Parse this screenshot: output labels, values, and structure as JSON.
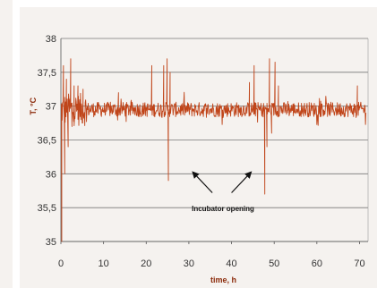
{
  "chart_data": {
    "type": "line",
    "title": "",
    "xlabel": "time, h",
    "ylabel": "T, °C",
    "xlim": [
      0,
      72
    ],
    "ylim": [
      35,
      38
    ],
    "x_ticks": [
      "0",
      "10",
      "20",
      "30",
      "40",
      "50",
      "60",
      "70"
    ],
    "x_tick_values": [
      0,
      10,
      20,
      30,
      40,
      50,
      60,
      70
    ],
    "y_ticks": [
      "35",
      "35,5",
      "36",
      "36,5",
      "37",
      "37,5",
      "38"
    ],
    "y_tick_values": [
      35,
      35.5,
      36,
      36.5,
      37,
      37.5,
      38
    ],
    "grid": "horizontal",
    "legend": "none",
    "colors": {
      "series": "#c0451a",
      "axis_title": "#8b2a0a",
      "grid": "#777777",
      "background": "#f5f2ef",
      "frame": "#ffffff"
    },
    "series": [
      {
        "baseline": 36.95,
        "x_end": 71.5,
        "spikes": [
          {
            "x": 0.2,
            "y": 35.0
          },
          {
            "x": 0.6,
            "y": 37.6
          },
          {
            "x": 0.9,
            "y": 36.0
          },
          {
            "x": 1.3,
            "y": 37.4
          },
          {
            "x": 1.7,
            "y": 36.4
          },
          {
            "x": 2.3,
            "y": 37.7
          },
          {
            "x": 2.6,
            "y": 36.7
          },
          {
            "x": 3.1,
            "y": 37.3
          },
          {
            "x": 4.0,
            "y": 37.3
          },
          {
            "x": 5.2,
            "y": 37.25
          },
          {
            "x": 13.5,
            "y": 37.2
          },
          {
            "x": 21.3,
            "y": 37.6
          },
          {
            "x": 24.1,
            "y": 37.6
          },
          {
            "x": 24.9,
            "y": 37.7
          },
          {
            "x": 25.2,
            "y": 35.9
          },
          {
            "x": 25.6,
            "y": 37.5
          },
          {
            "x": 44.2,
            "y": 37.35
          },
          {
            "x": 45.3,
            "y": 37.6
          },
          {
            "x": 47.8,
            "y": 35.7
          },
          {
            "x": 48.3,
            "y": 36.4
          },
          {
            "x": 48.9,
            "y": 37.7
          },
          {
            "x": 49.4,
            "y": 36.6
          },
          {
            "x": 50.2,
            "y": 37.65
          },
          {
            "x": 51.0,
            "y": 37.3
          },
          {
            "x": 69.5,
            "y": 37.3
          }
        ]
      }
    ],
    "annotations": [
      {
        "text": "Incubator opening",
        "x": 38,
        "y": 35.45,
        "arrows": [
          {
            "from": [
              35.5,
              35.72
            ],
            "to": [
              31,
              36.02
            ]
          },
          {
            "from": [
              40,
              35.72
            ],
            "to": [
              44.5,
              36.02
            ]
          }
        ]
      }
    ]
  }
}
